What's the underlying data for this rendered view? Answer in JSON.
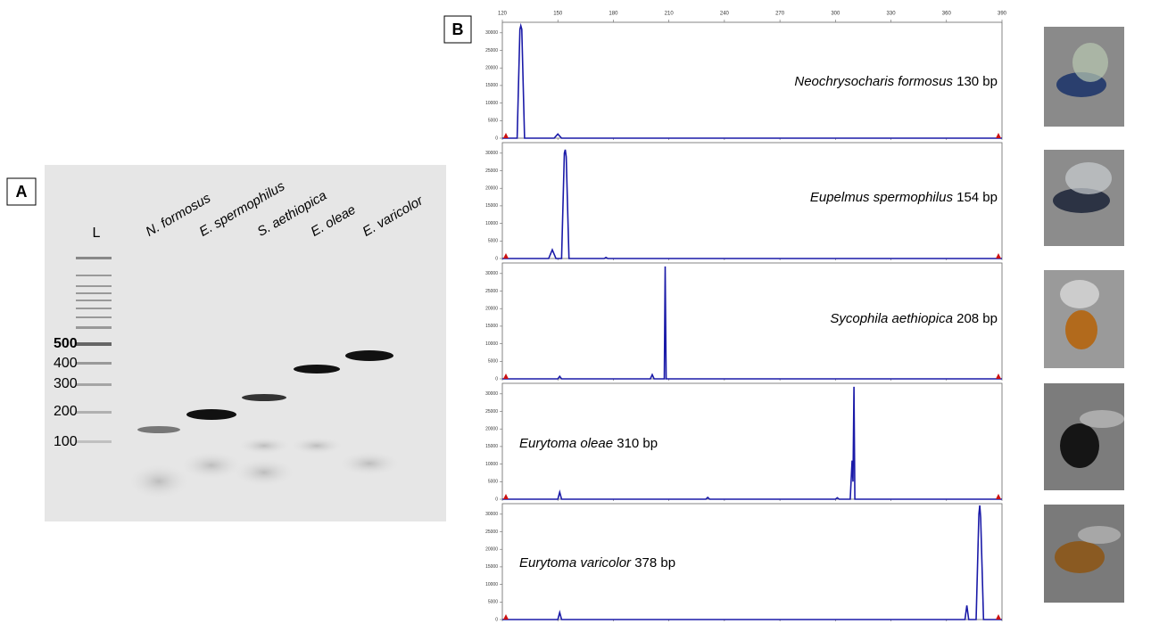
{
  "panels": {
    "a_label": "A",
    "b_label": "B"
  },
  "gel": {
    "ladder_label": "L",
    "lanes": [
      "N. formosus",
      "E. spermophilus",
      "S. aethiopica",
      "E. oleae",
      "E. varicolor"
    ],
    "size_labels": [
      500,
      400,
      300,
      200,
      100
    ]
  },
  "chart_data": [
    {
      "type": "line",
      "annotation": {
        "species": "Neochrysocharis formosus",
        "size": "130 bp"
      },
      "color": "#1a1aa8",
      "x": [
        120,
        128,
        129.5,
        130,
        130.5,
        132,
        148,
        150,
        152,
        390
      ],
      "values": [
        0,
        0,
        31000,
        32000,
        31000,
        0,
        0,
        1200,
        0,
        0
      ],
      "xlim": [
        120,
        390
      ],
      "xticks": [
        120,
        150,
        180,
        210,
        240,
        270,
        300,
        330,
        360,
        390
      ],
      "ylim": [
        0,
        33000
      ],
      "yticks": [
        0,
        5000,
        10000,
        15000,
        20000,
        25000,
        30000
      ]
    },
    {
      "type": "line",
      "annotation": {
        "species": "Eupelmus spermophilus",
        "size": "154 bp"
      },
      "color": "#1a1aa8",
      "x": [
        120,
        145,
        147,
        149,
        152,
        153.5,
        154,
        154.5,
        156,
        175,
        176,
        177,
        390
      ],
      "values": [
        0,
        0,
        2500,
        0,
        0,
        30000,
        31000,
        29000,
        0,
        0,
        300,
        0,
        0
      ],
      "xlim": [
        120,
        390
      ],
      "xticks": [
        120,
        150,
        180,
        210,
        240,
        270,
        300,
        330,
        360,
        390
      ],
      "ylim": [
        0,
        33000
      ],
      "yticks": [
        0,
        5000,
        10000,
        15000,
        20000,
        25000,
        30000
      ]
    },
    {
      "type": "line",
      "annotation": {
        "species": "Sycophila aethiopica",
        "size": "208 bp"
      },
      "color": "#1a1aa8",
      "x": [
        120,
        150,
        151,
        152,
        200,
        201,
        202,
        207.5,
        208,
        208.5,
        210,
        390
      ],
      "values": [
        0,
        0,
        700,
        0,
        0,
        1200,
        0,
        0,
        32000,
        0,
        0,
        0
      ],
      "xlim": [
        120,
        390
      ],
      "xticks": [
        120,
        150,
        180,
        210,
        240,
        270,
        300,
        330,
        360,
        390
      ],
      "ylim": [
        0,
        33000
      ],
      "yticks": [
        0,
        5000,
        10000,
        15000,
        20000,
        25000,
        30000
      ]
    },
    {
      "type": "line",
      "annotation": {
        "species": "Eurytoma oleae",
        "size": "310 bp"
      },
      "color": "#1a1aa8",
      "x": [
        120,
        150,
        151,
        152,
        230,
        231,
        232,
        300,
        301,
        302,
        308,
        309,
        309.5,
        310,
        310.5,
        312,
        390
      ],
      "values": [
        0,
        0,
        2000,
        0,
        0,
        500,
        0,
        0,
        400,
        0,
        0,
        11000,
        5000,
        32000,
        0,
        0,
        0
      ],
      "xlim": [
        120,
        390
      ],
      "xticks": [
        120,
        150,
        180,
        210,
        240,
        270,
        300,
        330,
        360,
        390
      ],
      "ylim": [
        0,
        33000
      ],
      "yticks": [
        0,
        5000,
        10000,
        15000,
        20000,
        25000,
        30000
      ]
    },
    {
      "type": "line",
      "annotation": {
        "species": "Eurytoma varicolor",
        "size": "378 bp"
      },
      "color": "#1a1aa8",
      "x": [
        120,
        150,
        151,
        152,
        370,
        371,
        372,
        376,
        377.5,
        378,
        378.5,
        380,
        390
      ],
      "values": [
        0,
        0,
        2000,
        0,
        0,
        4000,
        0,
        0,
        30000,
        32500,
        29000,
        0,
        0
      ],
      "xlim": [
        120,
        390
      ],
      "xticks": [
        120,
        150,
        180,
        210,
        240,
        270,
        300,
        330,
        360,
        390
      ],
      "ylim": [
        0,
        33000
      ],
      "yticks": [
        0,
        5000,
        10000,
        15000,
        20000,
        25000,
        30000
      ]
    }
  ]
}
